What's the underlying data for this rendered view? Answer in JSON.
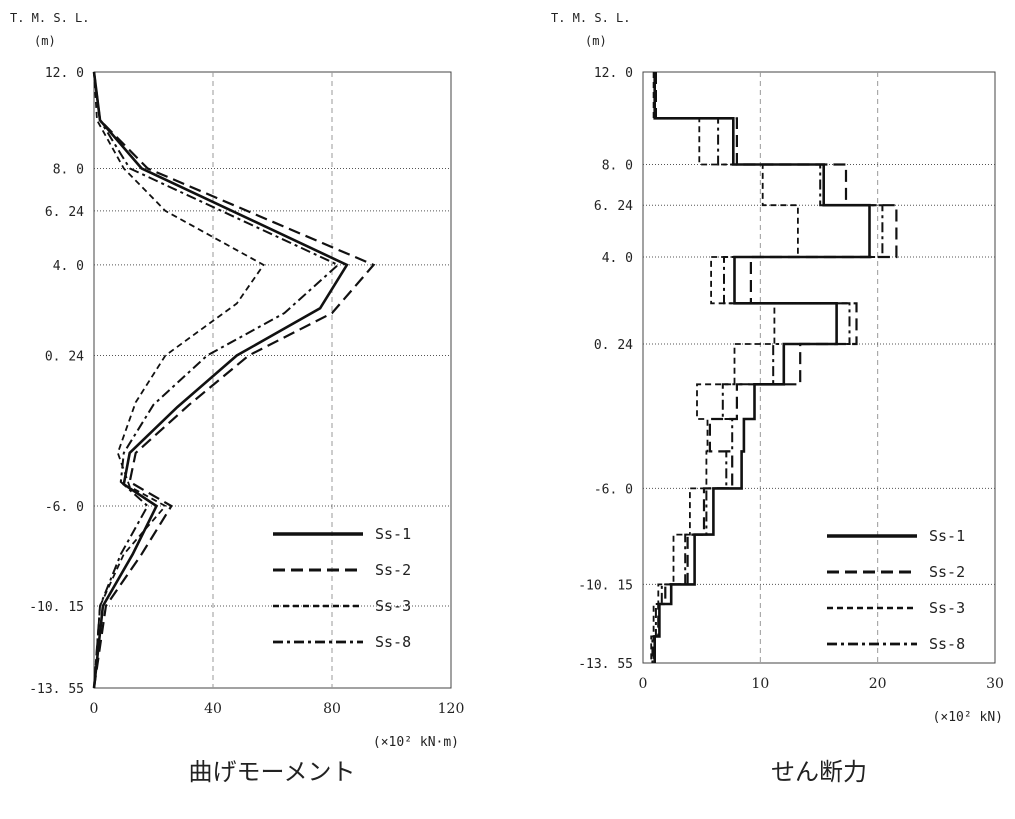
{
  "chart_data": [
    {
      "type": "line",
      "title": "曲げモーメント",
      "ylabel_line1": "T. M. S. L.",
      "ylabel_line2": "(m)",
      "xunit": "(×10² kN·m)",
      "xlim": [
        0,
        120
      ],
      "xticks": [
        "0",
        "40",
        "80",
        "120"
      ],
      "ylim": [
        -13.55,
        12.0
      ],
      "yticks": [
        {
          "label": "12. 0",
          "value": 12.0
        },
        {
          "label": "8. 0",
          "value": 8.0
        },
        {
          "label": "6. 24",
          "value": 6.24
        },
        {
          "label": "4. 0",
          "value": 4.0
        },
        {
          "label": "0. 24",
          "value": 0.24
        },
        {
          "label": "-6. 0",
          "value": -6.0
        },
        {
          "label": "-10. 15",
          "value": -10.15
        },
        {
          "label": "-13. 55",
          "value": -13.55
        }
      ],
      "grid": "vertical-dashed, horizontal-dotted",
      "legend": "bottom-right",
      "series": [
        {
          "name": "Ss-1",
          "style": "solid",
          "points": [
            [
              0,
              12.0
            ],
            [
              2,
              10.0
            ],
            [
              16,
              8.0
            ],
            [
              85,
              4.0
            ],
            [
              76,
              2.2
            ],
            [
              48,
              0.24
            ],
            [
              28,
              -1.9
            ],
            [
              12,
              -3.8
            ],
            [
              10,
              -5.1
            ],
            [
              21,
              -6.0
            ],
            [
              13,
              -8.0
            ],
            [
              3,
              -10.15
            ],
            [
              0,
              -13.55
            ]
          ]
        },
        {
          "name": "Ss-2",
          "style": "dashed",
          "points": [
            [
              0,
              12.0
            ],
            [
              2,
              10.0
            ],
            [
              18,
              8.0
            ],
            [
              94,
              4.0
            ],
            [
              80,
              2.0
            ],
            [
              52,
              0.24
            ],
            [
              32,
              -1.8
            ],
            [
              14,
              -3.8
            ],
            [
              12,
              -5.0
            ],
            [
              26,
              -6.0
            ],
            [
              16,
              -8.0
            ],
            [
              4,
              -10.15
            ],
            [
              0,
              -13.55
            ]
          ]
        },
        {
          "name": "Ss-3",
          "style": "short-dashed",
          "points": [
            [
              0,
              12.0
            ],
            [
              1,
              10.0
            ],
            [
              10,
              8.0
            ],
            [
              24,
              6.24
            ],
            [
              57,
              4.0
            ],
            [
              48,
              2.4
            ],
            [
              24,
              0.24
            ],
            [
              14,
              -1.7
            ],
            [
              8,
              -3.8
            ],
            [
              12,
              -5.2
            ],
            [
              24,
              -6.0
            ],
            [
              10,
              -8.0
            ],
            [
              2,
              -10.15
            ],
            [
              0,
              -13.55
            ]
          ]
        },
        {
          "name": "Ss-8",
          "style": "dash-dot",
          "points": [
            [
              0,
              12.0
            ],
            [
              2,
              10.0
            ],
            [
              12,
              8.0
            ],
            [
              82,
              4.0
            ],
            [
              64,
              2.0
            ],
            [
              38,
              0.24
            ],
            [
              20,
              -1.8
            ],
            [
              10,
              -3.8
            ],
            [
              9,
              -5.0
            ],
            [
              18,
              -6.0
            ],
            [
              9,
              -8.0
            ],
            [
              2,
              -10.15
            ],
            [
              0,
              -13.55
            ]
          ]
        }
      ]
    },
    {
      "type": "line",
      "title": "せん断力",
      "ylabel_line1": "T. M. S. L.",
      "ylabel_line2": "(m)",
      "xunit": "(×10² kN)",
      "xlim": [
        0,
        30
      ],
      "xticks": [
        "0",
        "10",
        "20",
        "30"
      ],
      "ylim": [
        -13.55,
        12.0
      ],
      "yticks": [
        {
          "label": "12. 0",
          "value": 12.0
        },
        {
          "label": "8. 0",
          "value": 8.0
        },
        {
          "label": "6. 24",
          "value": 6.24
        },
        {
          "label": "4. 0",
          "value": 4.0
        },
        {
          "label": "0. 24",
          "value": 0.24
        },
        {
          "label": "-6. 0",
          "value": -6.0
        },
        {
          "label": "-10. 15",
          "value": -10.15
        },
        {
          "label": "-13. 55",
          "value": -13.55
        }
      ],
      "grid": "vertical-dashed, horizontal-dotted",
      "legend": "bottom-right",
      "depths": [
        12.0,
        10.0,
        8.0,
        6.24,
        4.0,
        2.0,
        0.24,
        -1.5,
        -3.0,
        -4.4,
        -6.0,
        -8.0,
        -10.15,
        -11.0,
        -12.4,
        -13.55
      ],
      "series": [
        {
          "name": "Ss-1",
          "style": "solid",
          "values": [
            1.0,
            7.7,
            15.4,
            19.3,
            7.8,
            16.5,
            12.0,
            9.5,
            8.6,
            8.4,
            6.0,
            4.4,
            2.4,
            1.4,
            1.0
          ]
        },
        {
          "name": "Ss-2",
          "style": "dashed",
          "values": [
            1.1,
            8.0,
            17.3,
            21.6,
            9.2,
            18.2,
            13.4,
            8.0,
            5.7,
            7.6,
            5.2,
            3.8,
            1.9,
            1.3,
            0.9
          ]
        },
        {
          "name": "Ss-3",
          "style": "short-dashed",
          "values": [
            0.9,
            4.8,
            10.2,
            13.2,
            5.8,
            11.2,
            7.8,
            4.6,
            5.5,
            5.4,
            4.0,
            2.6,
            1.3,
            0.9,
            0.7
          ]
        },
        {
          "name": "Ss-8",
          "style": "dash-dot",
          "values": [
            1.0,
            6.4,
            15.1,
            20.4,
            6.9,
            17.6,
            11.1,
            6.8,
            7.6,
            7.1,
            5.4,
            3.6,
            1.6,
            1.1,
            0.8
          ]
        }
      ]
    }
  ]
}
